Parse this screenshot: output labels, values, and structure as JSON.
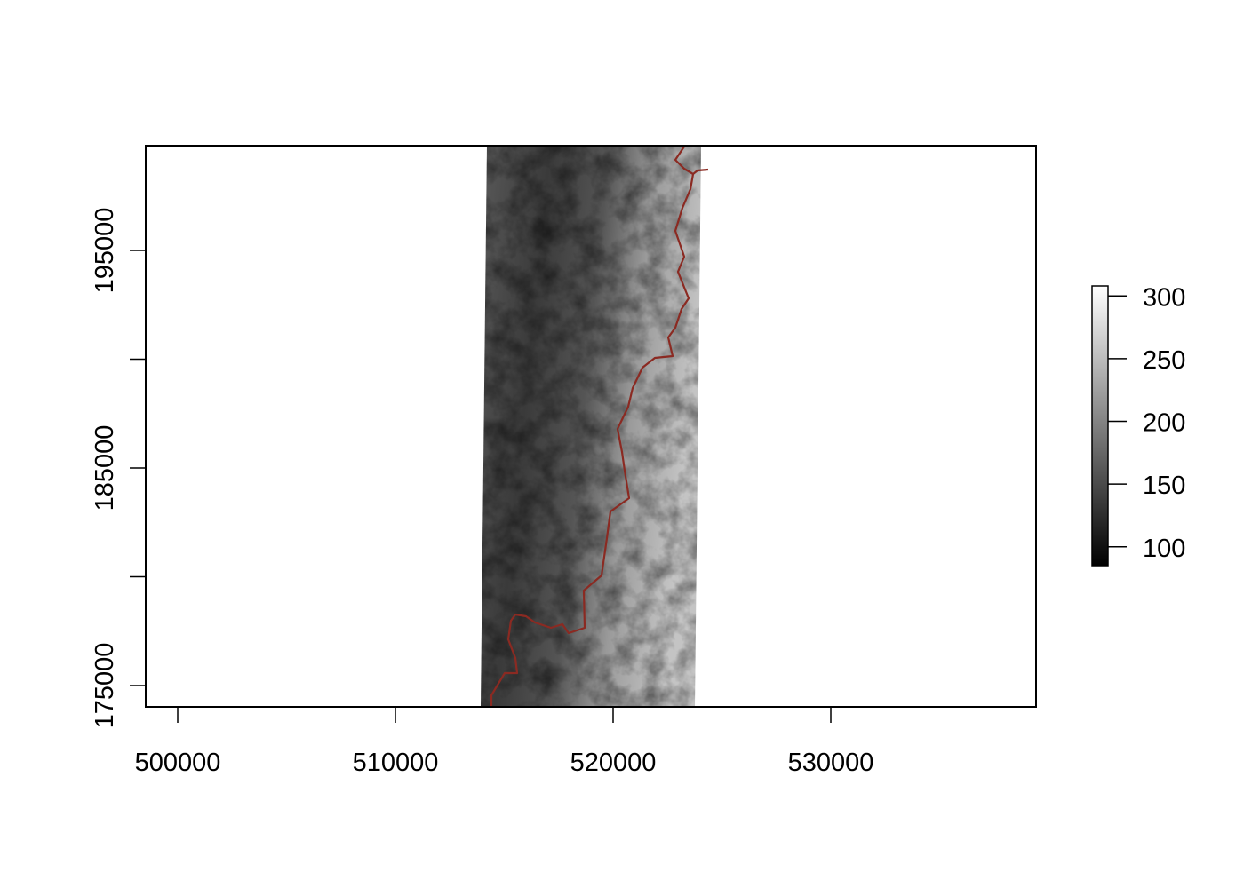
{
  "chart_data": {
    "type": "heatmap",
    "subtype": "raster-elevation",
    "title": "",
    "xlabel": "",
    "ylabel": "",
    "xlim": [
      498500,
      539400
    ],
    "ylim": [
      174000,
      199800
    ],
    "x_ticks": [
      500000,
      510000,
      520000,
      530000
    ],
    "x_tick_labels": [
      "500000",
      "510000",
      "520000",
      "530000"
    ],
    "y_ticks": [
      175000,
      180000,
      185000,
      190000,
      195000
    ],
    "y_tick_labels": [
      "175000",
      "",
      "185000",
      "",
      "195000"
    ],
    "raster_extent": {
      "xmin": 514000,
      "xmax": 524000,
      "ymin": 174000,
      "ymax": 199800
    },
    "legend": {
      "placement": "right",
      "range": [
        85,
        308
      ],
      "ticks": [
        100,
        150,
        200,
        250,
        300
      ],
      "tick_labels": [
        "100",
        "150",
        "200",
        "250",
        "300"
      ],
      "colormap": [
        "#000000",
        "#ffffff"
      ]
    },
    "overlay_line_color": "#8b2a22",
    "grid": false
  }
}
